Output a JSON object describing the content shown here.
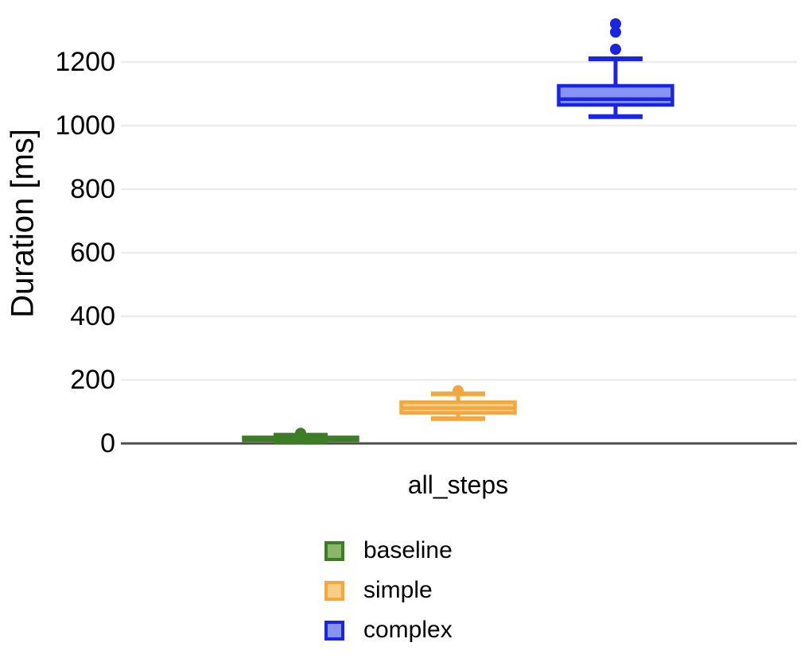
{
  "chart_data": {
    "type": "boxplot",
    "title": "",
    "ylabel": "Duration [ms]",
    "xlabel": "",
    "categories": [
      "all_steps"
    ],
    "ylim": [
      0,
      1375
    ],
    "yticks": [
      0,
      200,
      400,
      600,
      800,
      1000,
      1200
    ],
    "grid": "horizontal-light",
    "legend_position": "bottom-center",
    "axis_line_color": "#4d4d4d",
    "gridline_color": "#ededed",
    "series": [
      {
        "name": "baseline",
        "stroke": "#3e7d27",
        "fill": "#8bb76d",
        "box": {
          "whisker_low": 6,
          "q1": 10,
          "median": 15,
          "q3": 19,
          "whisker_high": 26,
          "outliers": [
            32
          ]
        }
      },
      {
        "name": "simple",
        "stroke": "#f3a83d",
        "fill": "#f8cd86",
        "box": {
          "whisker_low": 78,
          "q1": 96,
          "median": 111,
          "q3": 130,
          "whisker_high": 156,
          "outliers": [
            166
          ]
        }
      },
      {
        "name": "complex",
        "stroke": "#1b24e4",
        "fill": "#8695f1",
        "box": {
          "whisker_low": 1028,
          "q1": 1065,
          "median": 1083,
          "q3": 1125,
          "whisker_high": 1210,
          "outliers": [
            1240,
            1294,
            1320
          ]
        }
      }
    ]
  }
}
